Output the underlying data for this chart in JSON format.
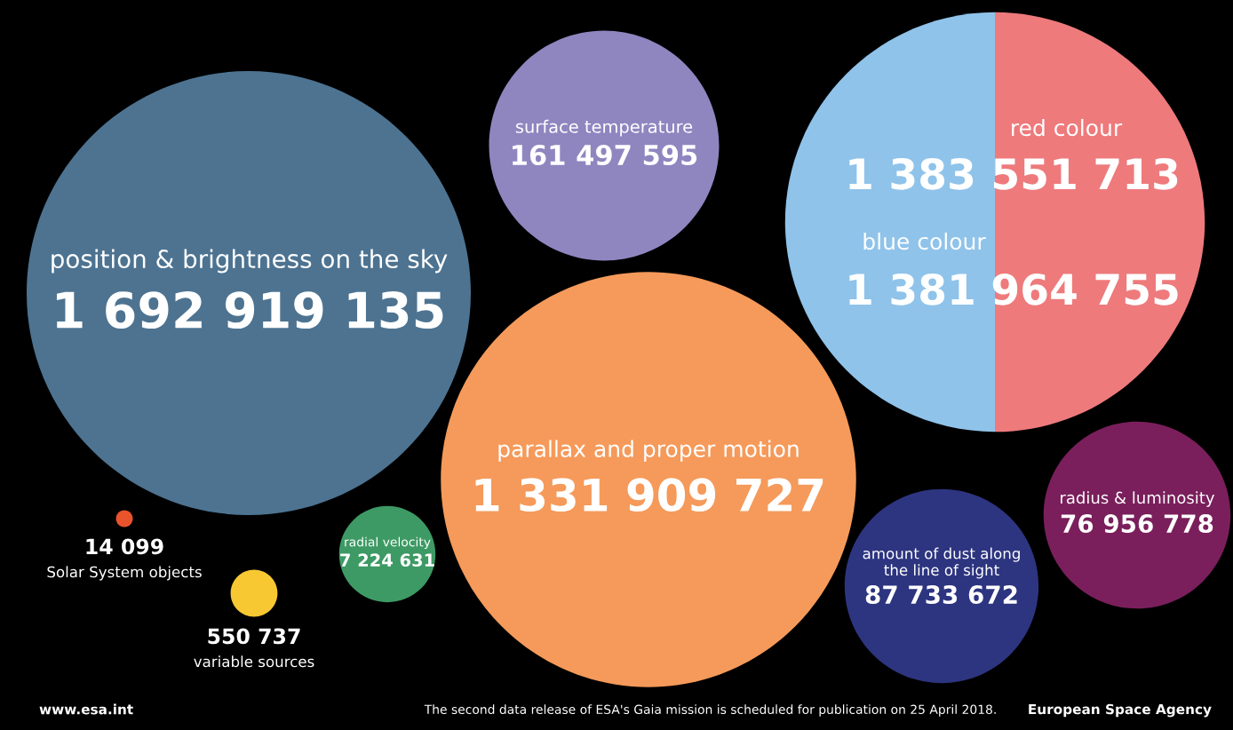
{
  "chart_data": {
    "type": "other",
    "categories": [
      "position & brightness on the sky",
      "surface temperature",
      "red colour",
      "blue colour",
      "parallax and proper motion",
      "radius & luminosity",
      "amount of dust along the line of sight",
      "radial velocity",
      "Solar System objects",
      "variable sources"
    ],
    "values": [
      1692919135,
      161497595,
      1383551713,
      1381964755,
      1331909727,
      76956778,
      87733672,
      7224631,
      14099,
      550737
    ],
    "value_labels": [
      "1 692 919 135",
      "161 497 595",
      "1 383 551 713",
      "1 381 964 755",
      "1 331 909 727",
      "76 956 778",
      "87 733 672",
      "7 224 631",
      "14 099",
      "550 737"
    ],
    "colors": [
      "#4d7391",
      "#8f86c0",
      "#ee7a7c",
      "#8fc3ea",
      "#f59a5a",
      "#7a1f5c",
      "#2d3580",
      "#3d9a64",
      "#e9532b",
      "#f7c832"
    ],
    "annotations": [
      "www.esa.int",
      "The second data release of ESA's Gaia mission is scheduled for publication on 25 April 2018.",
      "European Space Agency"
    ]
  }
}
